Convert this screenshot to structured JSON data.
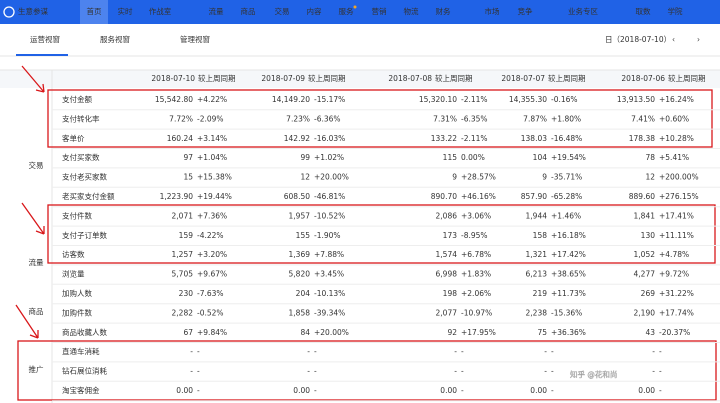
{
  "header": {
    "logo": "生意参谋",
    "nav": [
      "首页",
      "实时",
      "作战室",
      "流量",
      "商品",
      "交易",
      "内容",
      "服务",
      "营销",
      "物流",
      "财务",
      "市场",
      "竞争",
      "业务专区",
      "取数",
      "学院"
    ]
  },
  "tabs": [
    "运营视窗",
    "服务视窗",
    "管理视窗"
  ],
  "date": "日（2018-07-10）",
  "table": {
    "columns": [
      "2018-07-10",
      "2018-07-09",
      "2018-07-08",
      "2018-07-07",
      "2018-07-06"
    ],
    "compare_label": "较上周同期",
    "groups": [
      "交易",
      "流量",
      "商品",
      "推广"
    ],
    "rows": [
      {
        "label": "支付金额",
        "cells": [
          [
            "15,542.80",
            "+4.22%"
          ],
          [
            "14,149.20",
            "-15.17%"
          ],
          [
            "15,320.10",
            "-2.11%"
          ],
          [
            "14,355.30",
            "-0.16%"
          ],
          [
            "13,913.50",
            "+16.24%"
          ]
        ]
      },
      {
        "label": "支付转化率",
        "cells": [
          [
            "7.72%",
            "-2.09%"
          ],
          [
            "7.23%",
            "-6.36%"
          ],
          [
            "7.31%",
            "-6.35%"
          ],
          [
            "7.87%",
            "+1.80%"
          ],
          [
            "7.41%",
            "+0.60%"
          ]
        ]
      },
      {
        "label": "客单价",
        "cells": [
          [
            "160.24",
            "+3.14%"
          ],
          [
            "142.92",
            "-16.03%"
          ],
          [
            "133.22",
            "-2.11%"
          ],
          [
            "138.03",
            "-16.48%"
          ],
          [
            "178.38",
            "+10.28%"
          ]
        ]
      },
      {
        "label": "支付买家数",
        "cells": [
          [
            "97",
            "+1.04%"
          ],
          [
            "99",
            "+1.02%"
          ],
          [
            "115",
            "0.00%"
          ],
          [
            "104",
            "+19.54%"
          ],
          [
            "78",
            "+5.41%"
          ]
        ]
      },
      {
        "label": "支付老买家数",
        "cells": [
          [
            "15",
            "+15.38%"
          ],
          [
            "12",
            "+20.00%"
          ],
          [
            "9",
            "+28.57%"
          ],
          [
            "9",
            "-35.71%"
          ],
          [
            "12",
            "+200.00%"
          ]
        ]
      },
      {
        "label": "老买家支付金额",
        "cells": [
          [
            "1,223.90",
            "+19.44%"
          ],
          [
            "608.50",
            "-46.81%"
          ],
          [
            "890.70",
            "+46.16%"
          ],
          [
            "857.90",
            "-65.28%"
          ],
          [
            "889.60",
            "+276.15%"
          ]
        ]
      },
      {
        "label": "支付件数",
        "cells": [
          [
            "2,071",
            "+7.36%"
          ],
          [
            "1,957",
            "-10.52%"
          ],
          [
            "2,086",
            "+3.06%"
          ],
          [
            "1,944",
            "+1.46%"
          ],
          [
            "1,841",
            "+17.41%"
          ]
        ]
      },
      {
        "label": "支付子订单数",
        "cells": [
          [
            "159",
            "-4.22%"
          ],
          [
            "155",
            "-1.90%"
          ],
          [
            "173",
            "-8.95%"
          ],
          [
            "158",
            "+16.18%"
          ],
          [
            "130",
            "+11.11%"
          ]
        ]
      },
      {
        "label": "访客数",
        "cells": [
          [
            "1,257",
            "+3.20%"
          ],
          [
            "1,369",
            "+7.88%"
          ],
          [
            "1,574",
            "+6.78%"
          ],
          [
            "1,321",
            "+17.42%"
          ],
          [
            "1,052",
            "+4.78%"
          ]
        ]
      },
      {
        "label": "浏览量",
        "cells": [
          [
            "5,705",
            "+9.67%"
          ],
          [
            "5,820",
            "+3.45%"
          ],
          [
            "6,998",
            "+1.83%"
          ],
          [
            "6,213",
            "+38.65%"
          ],
          [
            "4,277",
            "+9.72%"
          ]
        ]
      },
      {
        "label": "加购人数",
        "cells": [
          [
            "230",
            "-7.63%"
          ],
          [
            "204",
            "-10.13%"
          ],
          [
            "198",
            "+2.06%"
          ],
          [
            "219",
            "+11.73%"
          ],
          [
            "269",
            "+31.22%"
          ]
        ]
      },
      {
        "label": "加购件数",
        "cells": [
          [
            "2,282",
            "-0.52%"
          ],
          [
            "1,858",
            "-39.34%"
          ],
          [
            "2,077",
            "-10.97%"
          ],
          [
            "2,238",
            "-15.36%"
          ],
          [
            "2,190",
            "+17.74%"
          ]
        ]
      },
      {
        "label": "商品收藏人数",
        "cells": [
          [
            "67",
            "+9.84%"
          ],
          [
            "84",
            "+20.00%"
          ],
          [
            "92",
            "+17.95%"
          ],
          [
            "75",
            "+36.36%"
          ],
          [
            "43",
            "-20.37%"
          ]
        ]
      },
      {
        "label": "直通车消耗",
        "cells": [
          [
            "-",
            "-"
          ],
          [
            "-",
            "-"
          ],
          [
            "-",
            "-"
          ],
          [
            "-",
            "-"
          ],
          [
            "-",
            "-"
          ]
        ]
      },
      {
        "label": "钻石展位消耗",
        "cells": [
          [
            "-",
            "-"
          ],
          [
            "-",
            "-"
          ],
          [
            "-",
            "-"
          ],
          [
            "-",
            "-"
          ],
          [
            "-",
            "-"
          ]
        ]
      },
      {
        "label": "淘宝客佣金",
        "cells": [
          [
            "0.00",
            "-"
          ],
          [
            "0.00",
            "-"
          ],
          [
            "0.00",
            "-"
          ],
          [
            "0.00",
            "-"
          ],
          [
            "0.00",
            "-"
          ]
        ]
      }
    ]
  },
  "watermark": "知乎 @花和尚"
}
